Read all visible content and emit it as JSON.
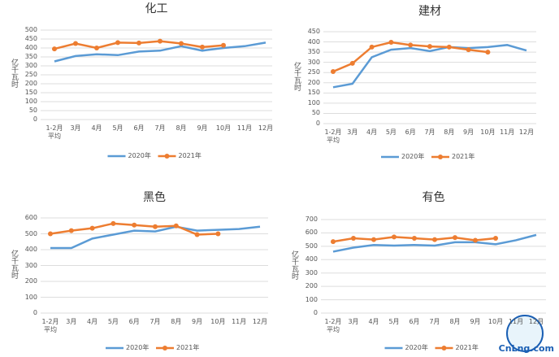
{
  "chart_data": [
    {
      "type": "line",
      "title": "化工",
      "y_label": "亿千瓦时",
      "categories": [
        "1-2月平均",
        "3月",
        "4月",
        "5月",
        "6月",
        "7月",
        "8月",
        "9月",
        "10月",
        "11月",
        "12月"
      ],
      "ylim": [
        0,
        500
      ],
      "yticks": [
        0,
        50,
        100,
        150,
        200,
        250,
        300,
        350,
        400,
        450,
        500
      ],
      "grid": true,
      "legend": "bottom",
      "series": [
        {
          "name": "2020年",
          "color": "#5b9bd5",
          "values": [
            325,
            355,
            365,
            360,
            380,
            385,
            410,
            385,
            400,
            410,
            430
          ]
        },
        {
          "name": "2021年",
          "color": "#ed7d31",
          "values": [
            395,
            425,
            400,
            430,
            428,
            438,
            425,
            405,
            415,
            null,
            null
          ]
        }
      ]
    },
    {
      "type": "line",
      "title": "建材",
      "y_label": "亿千瓦时",
      "categories": [
        "1-2月平均",
        "3月",
        "4月",
        "5月",
        "6月",
        "7月",
        "8月",
        "9月",
        "10月",
        "11月",
        "12月"
      ],
      "ylim": [
        0,
        450
      ],
      "yticks": [
        0,
        50,
        100,
        150,
        200,
        250,
        300,
        350,
        400,
        450
      ],
      "grid": true,
      "legend": "bottom",
      "series": [
        {
          "name": "2020年",
          "color": "#5b9bd5",
          "values": [
            178,
            195,
            325,
            362,
            370,
            355,
            375,
            370,
            375,
            385,
            358
          ]
        },
        {
          "name": "2021年",
          "color": "#ed7d31",
          "values": [
            255,
            295,
            375,
            398,
            385,
            378,
            375,
            362,
            350,
            null,
            null
          ]
        }
      ]
    },
    {
      "type": "line",
      "title": "黑色",
      "y_label": "亿千瓦时",
      "categories": [
        "1-2月平均",
        "3月",
        "4月",
        "5月",
        "6月",
        "7月",
        "8月",
        "9月",
        "10月",
        "11月",
        "12月"
      ],
      "ylim": [
        0,
        600
      ],
      "yticks": [
        0,
        100,
        200,
        300,
        400,
        500,
        600
      ],
      "grid": true,
      "legend": "bottom",
      "series": [
        {
          "name": "2020年",
          "color": "#5b9bd5",
          "values": [
            410,
            410,
            470,
            495,
            520,
            515,
            545,
            520,
            525,
            530,
            545
          ]
        },
        {
          "name": "2021年",
          "color": "#ed7d31",
          "values": [
            500,
            520,
            535,
            565,
            555,
            545,
            550,
            495,
            500,
            null,
            null
          ]
        }
      ]
    },
    {
      "type": "line",
      "title": "有色",
      "y_label": "亿千瓦时",
      "categories": [
        "1-2月平均",
        "3月",
        "4月",
        "5月",
        "6月",
        "7月",
        "8月",
        "9月",
        "10月",
        "11月",
        "12月"
      ],
      "ylim": [
        0,
        700
      ],
      "yticks": [
        0,
        100,
        200,
        300,
        400,
        500,
        600,
        700
      ],
      "grid": true,
      "legend": "bottom",
      "series": [
        {
          "name": "2020年",
          "color": "#5b9bd5",
          "values": [
            460,
            490,
            510,
            505,
            510,
            505,
            530,
            530,
            515,
            545,
            585
          ]
        },
        {
          "name": "2021年",
          "color": "#ed7d31",
          "values": [
            535,
            560,
            550,
            570,
            560,
            550,
            565,
            545,
            560,
            null,
            null
          ]
        }
      ]
    }
  ],
  "watermark": "CnLng.com"
}
